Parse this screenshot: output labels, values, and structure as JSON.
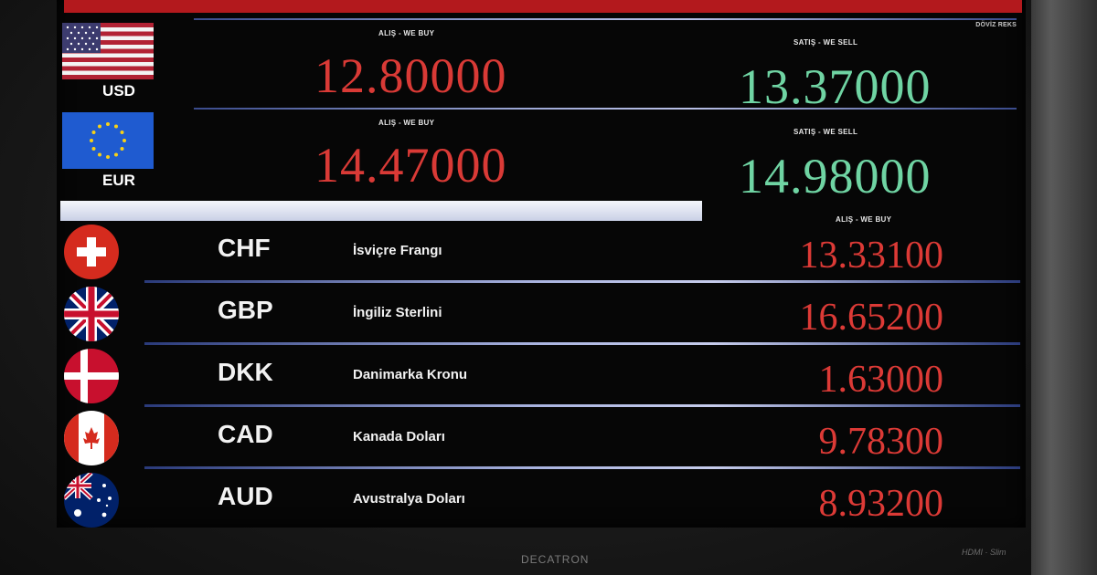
{
  "board": {
    "brand_tag": "DÖVİZ REKS",
    "monitor_brand": "DECATRON",
    "monitor_badge": "HDMI · Slim",
    "colors": {
      "buy": "#d93a36",
      "sell": "#6fd4a3",
      "header": "#b3191d"
    }
  },
  "major": [
    {
      "code": "USD",
      "flag": "us-flag-icon",
      "buy_label": "ALIŞ - WE BUY",
      "sell_label": "SATIŞ - WE SELL",
      "buy": "12.80000",
      "sell": "13.37000"
    },
    {
      "code": "EUR",
      "flag": "eu-flag-icon",
      "buy_label": "ALIŞ - WE BUY",
      "sell_label": "SATIŞ - WE SELL",
      "buy": "14.47000",
      "sell": "14.98000"
    }
  ],
  "minor_header": "ALIŞ - WE BUY",
  "minor": [
    {
      "code": "CHF",
      "name": "İsviçre Frangı",
      "value": "13.33100",
      "flag": "swiss-flag-icon"
    },
    {
      "code": "GBP",
      "name": "İngiliz Sterlini",
      "value": "16.65200",
      "flag": "uk-flag-icon"
    },
    {
      "code": "DKK",
      "name": "Danimarka Kronu",
      "value": "1.63000",
      "flag": "denmark-flag-icon"
    },
    {
      "code": "CAD",
      "name": "Kanada Doları",
      "value": "9.78300",
      "flag": "canada-flag-icon"
    },
    {
      "code": "AUD",
      "name": "Avustralya Doları",
      "value": "8.93200",
      "flag": "australia-flag-icon"
    }
  ]
}
